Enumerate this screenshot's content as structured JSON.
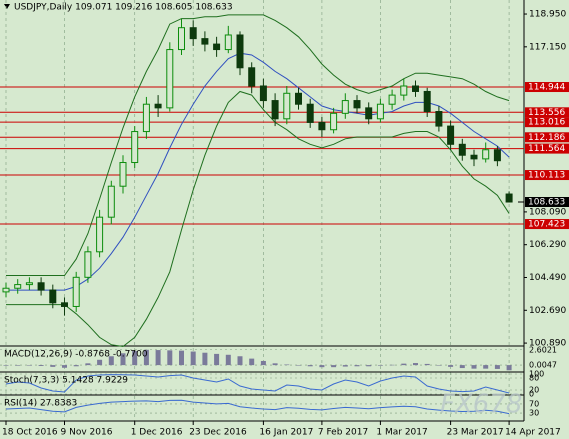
{
  "chart_data": {
    "type": "candlestick",
    "title": "USDJPY,Daily 109.071 109.216 108.605 108.633",
    "watermark": "FX678",
    "categories": [
      "18 Oct 2016",
      null,
      null,
      null,
      null,
      "9 Nov 2016",
      null,
      null,
      null,
      null,
      null,
      "1 Dec 2016",
      null,
      null,
      null,
      null,
      "23 Dec 2016",
      null,
      null,
      null,
      null,
      null,
      "16 Jan 2017",
      null,
      null,
      null,
      null,
      "7 Feb 2017",
      null,
      null,
      null,
      null,
      "1 Mar 2017",
      null,
      null,
      null,
      null,
      null,
      "23 Mar 2017",
      null,
      null,
      null,
      null,
      "14 Apr 2017"
    ],
    "open": [
      103.7,
      103.9,
      104.1,
      104.2,
      103.8,
      103.1,
      102.9,
      104.5,
      105.9,
      107.8,
      109.5,
      110.8,
      112.5,
      114.0,
      113.8,
      117.0,
      118.2,
      117.6,
      117.3,
      117.0,
      117.8,
      116.0,
      115.0,
      114.2,
      113.2,
      114.6,
      114.0,
      113.0,
      112.6,
      113.5,
      114.2,
      113.8,
      113.2,
      114.0,
      114.5,
      115.0,
      114.7,
      113.6,
      112.8,
      111.8,
      111.2,
      111.0,
      111.5,
      109.071
    ],
    "high": [
      104.2,
      104.4,
      104.5,
      104.5,
      104.1,
      103.4,
      104.8,
      106.2,
      108.2,
      109.8,
      111.2,
      112.8,
      114.4,
      114.5,
      117.4,
      118.7,
      118.6,
      118.0,
      117.7,
      118.3,
      118.0,
      116.3,
      115.4,
      114.6,
      115.0,
      114.9,
      114.3,
      113.3,
      113.8,
      114.6,
      114.5,
      114.1,
      114.3,
      114.8,
      115.4,
      115.3,
      114.9,
      113.9,
      113.1,
      112.1,
      111.5,
      111.9,
      111.7,
      109.216
    ],
    "low": [
      103.4,
      103.6,
      103.8,
      103.5,
      102.8,
      102.4,
      102.6,
      104.2,
      105.6,
      107.4,
      109.1,
      110.5,
      112.1,
      113.3,
      113.6,
      116.7,
      117.2,
      116.9,
      116.6,
      116.8,
      115.6,
      114.6,
      113.8,
      112.8,
      112.9,
      113.7,
      112.7,
      112.2,
      112.4,
      113.2,
      113.5,
      112.9,
      113.0,
      113.7,
      114.2,
      114.4,
      113.3,
      112.5,
      111.5,
      110.9,
      110.6,
      110.8,
      110.6,
      108.605
    ],
    "close": [
      103.9,
      104.1,
      104.2,
      103.8,
      103.1,
      102.9,
      104.5,
      105.9,
      107.8,
      109.5,
      110.8,
      112.5,
      114.0,
      113.8,
      117.0,
      118.2,
      117.6,
      117.3,
      117.0,
      117.8,
      116.0,
      115.0,
      114.2,
      113.2,
      114.6,
      114.0,
      113.0,
      112.6,
      113.5,
      114.2,
      113.8,
      113.2,
      114.0,
      114.5,
      115.0,
      114.7,
      113.6,
      112.8,
      111.8,
      111.2,
      111.0,
      111.5,
      110.9,
      108.633
    ],
    "up_color": "#0c8c0c",
    "down_color": "#0d3a0d",
    "bands": [
      {
        "color": "#1f6f1f",
        "values": [
          104.6,
          104.6,
          104.6,
          104.6,
          104.6,
          104.6,
          105.5,
          106.9,
          108.8,
          110.8,
          112.7,
          114.4,
          115.8,
          117.0,
          118.4,
          118.7,
          118.7,
          118.8,
          118.8,
          118.9,
          118.9,
          118.9,
          118.9,
          118.6,
          118.2,
          117.7,
          117.0,
          116.2,
          115.6,
          115.1,
          114.8,
          114.6,
          114.8,
          115.0,
          115.4,
          115.7,
          115.7,
          115.6,
          115.5,
          115.4,
          115.1,
          114.7,
          114.4,
          114.2
        ]
      },
      {
        "color": "#3050c0",
        "values": [
          103.8,
          103.8,
          103.8,
          103.8,
          103.8,
          103.8,
          104.0,
          104.4,
          105.0,
          105.8,
          106.7,
          107.8,
          109.0,
          110.2,
          111.6,
          112.9,
          114.0,
          115.0,
          115.8,
          116.5,
          116.8,
          116.7,
          116.3,
          115.8,
          115.4,
          114.9,
          114.4,
          113.9,
          113.7,
          113.6,
          113.5,
          113.4,
          113.5,
          113.6,
          113.9,
          114.1,
          114.1,
          113.9,
          113.5,
          113.0,
          112.5,
          112.1,
          111.7,
          111.1
        ]
      },
      {
        "color": "#1f6f1f",
        "values": [
          103.0,
          103.0,
          103.0,
          103.0,
          103.0,
          103.0,
          102.5,
          101.9,
          101.2,
          100.8,
          100.7,
          101.2,
          102.2,
          103.4,
          104.8,
          107.1,
          109.3,
          111.2,
          112.8,
          114.1,
          114.7,
          114.5,
          113.7,
          113.0,
          112.6,
          112.1,
          111.8,
          111.6,
          111.8,
          112.1,
          112.2,
          112.2,
          112.2,
          112.2,
          112.4,
          112.5,
          112.5,
          112.2,
          111.5,
          110.6,
          109.9,
          109.5,
          109.0,
          108.0
        ]
      }
    ],
    "levels": [
      114.944,
      113.556,
      113.016,
      112.186,
      111.564,
      110.113,
      107.423
    ],
    "level_color": "#cc0000",
    "last_price": 108.633,
    "ylim": [
      100.73,
      119.72
    ],
    "yticks": [
      {
        "value": 118.95,
        "label": "118.950"
      },
      {
        "value": 117.15,
        "label": "117.150"
      },
      {
        "value": 108.09,
        "label": "108.090"
      },
      {
        "value": 106.29,
        "label": "106.290"
      },
      {
        "value": 104.49,
        "label": "104.490"
      },
      {
        "value": 102.69,
        "label": "102.690"
      },
      {
        "value": 100.89,
        "label": "100.890"
      }
    ],
    "indicators": [
      {
        "name": "MACD(12,26,9) -0.8768 -0.7700",
        "type": "histogram",
        "color": "#7a7a9a",
        "ylim": [
          -1,
          2.9
        ],
        "yticks": [
          2.6021,
          0.0047
        ],
        "values": [
          -0.1,
          -0.1,
          -0.05,
          -0.15,
          -0.3,
          -0.45,
          -0.2,
          0.3,
          0.9,
          1.5,
          2.0,
          2.4,
          2.6,
          2.55,
          2.5,
          2.45,
          2.3,
          2.1,
          1.9,
          1.75,
          1.5,
          1.1,
          0.7,
          0.3,
          0.1,
          -0.05,
          -0.2,
          -0.35,
          -0.35,
          -0.25,
          -0.2,
          -0.2,
          -0.1,
          0.05,
          0.25,
          0.35,
          0.2,
          -0.05,
          -0.3,
          -0.5,
          -0.6,
          -0.6,
          -0.65,
          -0.8768
        ]
      },
      {
        "name": "Stoch(7,3,3) 5.1428 7.9229",
        "type": "line",
        "color": "#3a6ad0",
        "ylim": [
          0,
          100
        ],
        "yticks": [
          100,
          80,
          20,
          0
        ],
        "values": [
          50,
          60,
          55,
          30,
          15,
          10,
          70,
          90,
          95,
          97,
          96,
          95,
          90,
          85,
          92,
          95,
          80,
          70,
          60,
          75,
          40,
          25,
          20,
          15,
          45,
          40,
          25,
          20,
          50,
          70,
          60,
          40,
          65,
          80,
          90,
          85,
          40,
          25,
          15,
          12,
          15,
          35,
          20,
          5.1428
        ]
      },
      {
        "name": "RSI(14) 27.8383",
        "type": "line",
        "color": "#3a6ad0",
        "ylim": [
          0,
          100
        ],
        "yticks": [
          70,
          30
        ],
        "values": [
          48,
          50,
          52,
          45,
          38,
          35,
          55,
          65,
          72,
          78,
          80,
          82,
          83,
          80,
          85,
          86,
          78,
          74,
          70,
          72,
          58,
          52,
          48,
          45,
          54,
          51,
          46,
          44,
          50,
          55,
          52,
          49,
          54,
          57,
          60,
          58,
          48,
          43,
          39,
          37,
          38,
          42,
          38,
          27.8383
        ]
      }
    ]
  }
}
